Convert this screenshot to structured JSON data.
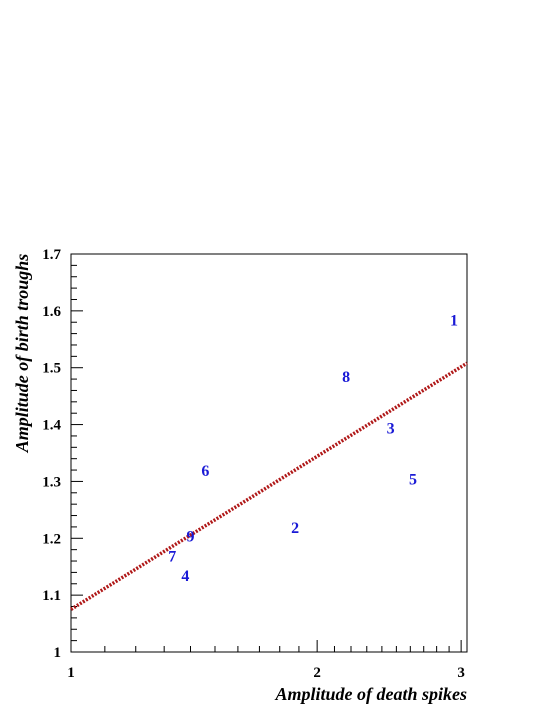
{
  "chart_data": {
    "type": "scatter",
    "title": "",
    "xlabel": "Amplitude of death spikes",
    "ylabel": "Amplitude of birth troughs",
    "x_scale": "log",
    "xlim": [
      1,
      3.05
    ],
    "ylim": [
      1,
      1.7
    ],
    "x_ticks": [
      {
        "value": 1,
        "label": "1"
      },
      {
        "value": 2,
        "label": "2"
      },
      {
        "value": 3,
        "label": "3"
      }
    ],
    "y_ticks": [
      {
        "value": 1.0,
        "label": "1"
      },
      {
        "value": 1.1,
        "label": "1.1"
      },
      {
        "value": 1.2,
        "label": "1.2"
      },
      {
        "value": 1.3,
        "label": "1.3"
      },
      {
        "value": 1.4,
        "label": "1.4"
      },
      {
        "value": 1.5,
        "label": "1.5"
      },
      {
        "value": 1.6,
        "label": "1.6"
      },
      {
        "value": 1.7,
        "label": "1.7"
      }
    ],
    "grid": false,
    "points": [
      {
        "label": "1",
        "x": 2.94,
        "y": 1.585
      },
      {
        "label": "2",
        "x": 1.88,
        "y": 1.22
      },
      {
        "label": "3",
        "x": 2.46,
        "y": 1.395
      },
      {
        "label": "4",
        "x": 1.38,
        "y": 1.135
      },
      {
        "label": "5",
        "x": 2.62,
        "y": 1.305
      },
      {
        "label": "6",
        "x": 1.46,
        "y": 1.32
      },
      {
        "label": "7",
        "x": 1.33,
        "y": 1.17
      },
      {
        "label": "8",
        "x": 2.17,
        "y": 1.485
      },
      {
        "label": "9",
        "x": 1.4,
        "y": 1.205
      }
    ],
    "fit_line": {
      "x": [
        1,
        3.05
      ],
      "y": [
        1.075,
        1.508
      ],
      "style": "dotted",
      "color": "#b01818"
    },
    "point_color": "#1a1ad6"
  }
}
